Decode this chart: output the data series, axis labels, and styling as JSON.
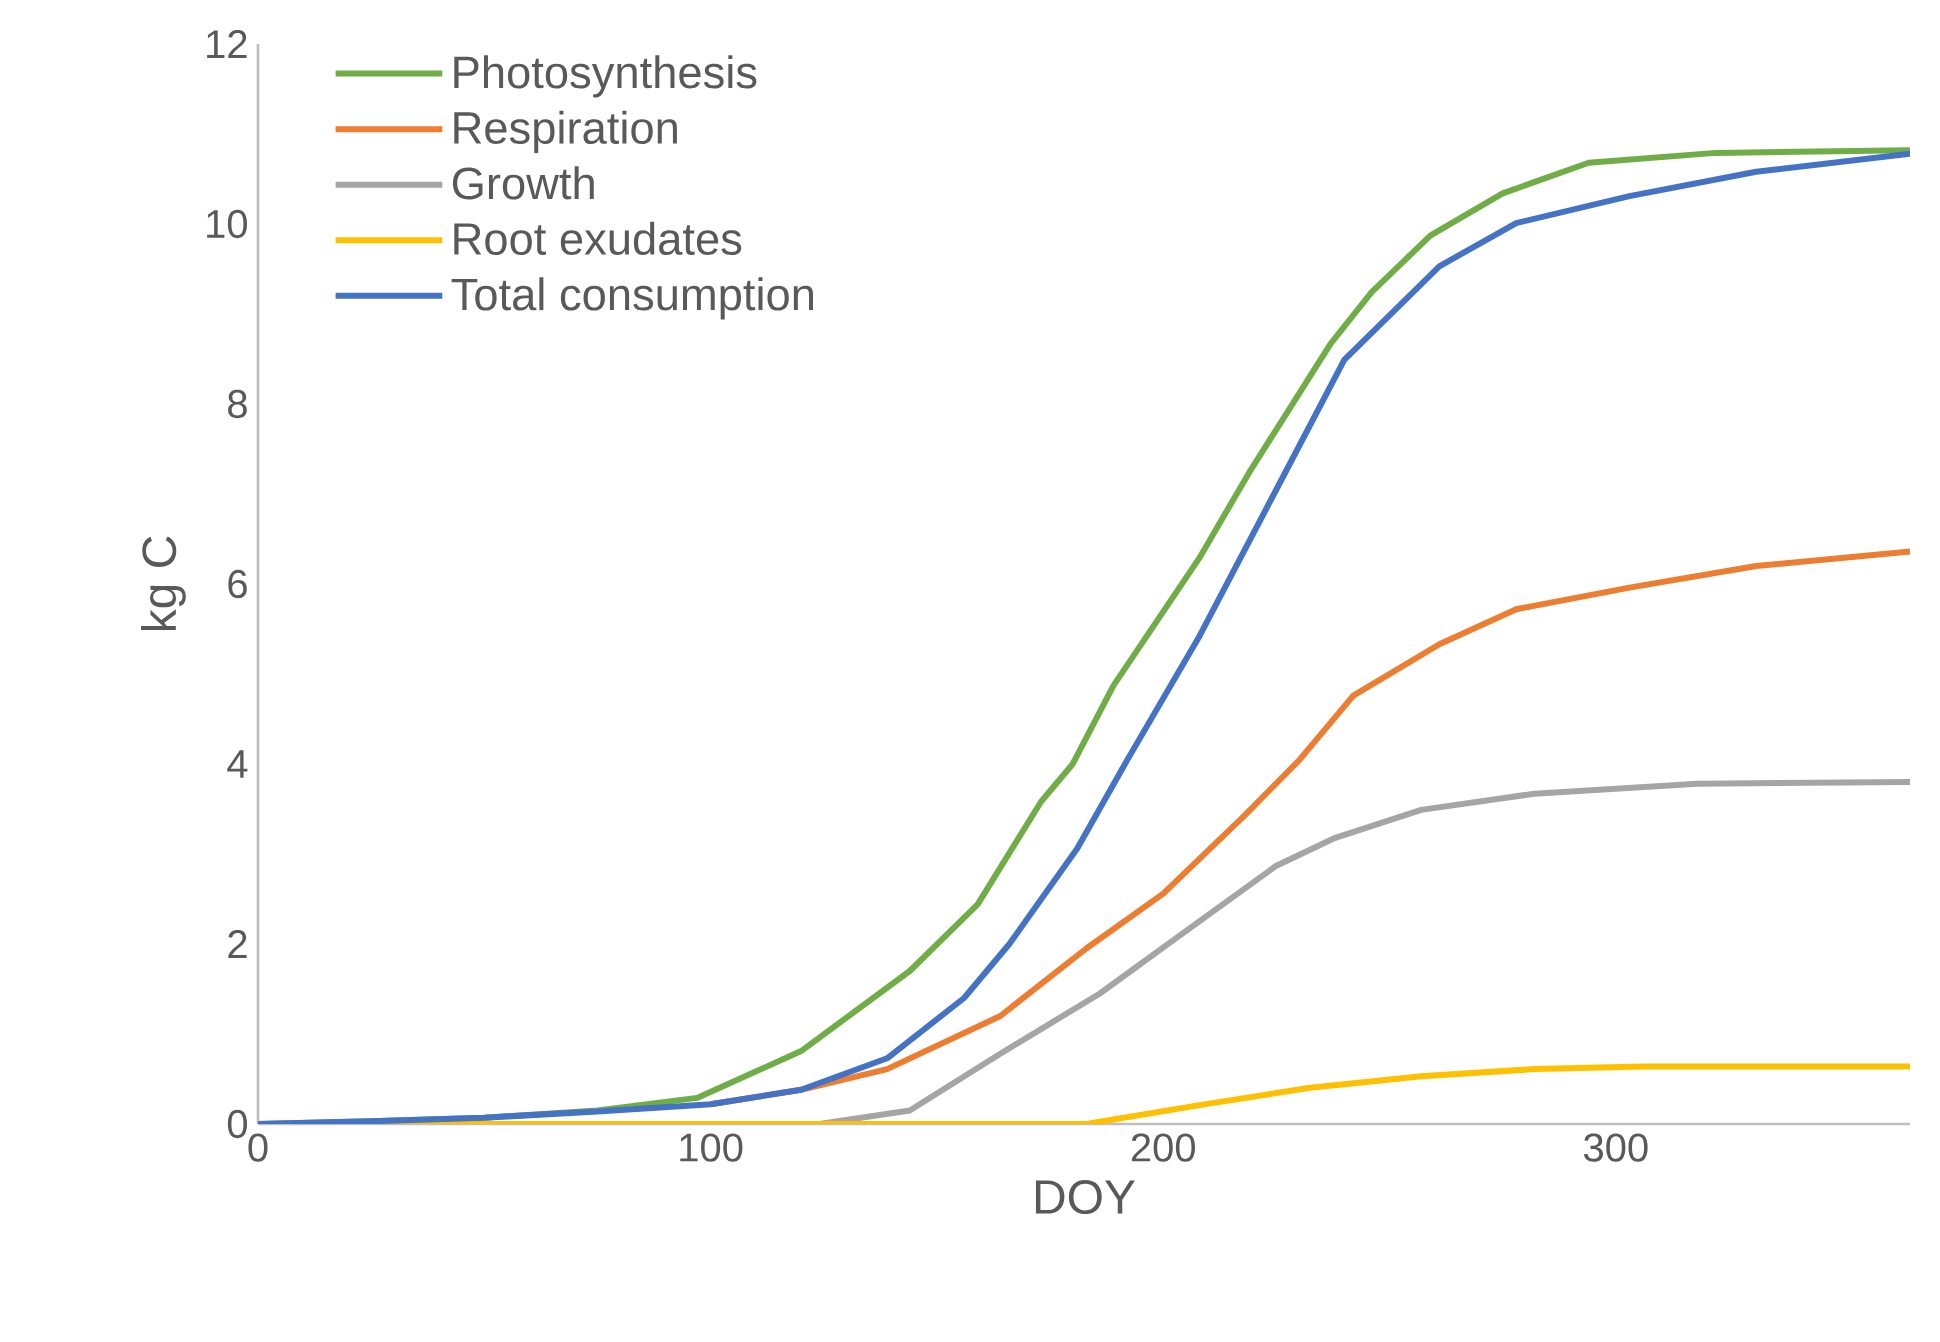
{
  "chart_data": {
    "type": "line",
    "xlabel": "DOY",
    "ylabel": "kg C",
    "xlim": [
      0,
      365
    ],
    "ylim": [
      0,
      12
    ],
    "xticks": [
      0,
      100,
      200,
      300
    ],
    "yticks": [
      0,
      2,
      4,
      6,
      8,
      10,
      12
    ],
    "grid": false,
    "legend": "top left",
    "series": [
      {
        "name": "Photosynthesis",
        "color": "#70ad47",
        "x": [
          0,
          25,
          50,
          75,
          97,
          120,
          144,
          159,
          173,
          180,
          189,
          208,
          219,
          237,
          246,
          259,
          275,
          294,
          322,
          365
        ],
        "values": [
          0,
          0.03,
          0.07,
          0.15,
          0.29,
          0.81,
          1.7,
          2.44,
          3.58,
          4.0,
          4.87,
          6.29,
          7.24,
          8.67,
          9.24,
          9.87,
          10.34,
          10.68,
          10.79,
          10.82
        ]
      },
      {
        "name": "Respiration",
        "color": "#ed7d31",
        "x": [
          100,
          120,
          139,
          164,
          183,
          200,
          218,
          230,
          242,
          261,
          278,
          303,
          331,
          365
        ],
        "values": [
          0.22,
          0.38,
          0.61,
          1.2,
          1.95,
          2.56,
          3.43,
          4.04,
          4.76,
          5.33,
          5.72,
          5.96,
          6.2,
          6.36
        ]
      },
      {
        "name": "Growth",
        "color": "#a5a5a5",
        "x": [
          0,
          50,
          100,
          124,
          144,
          164,
          186,
          203,
          225,
          238,
          257,
          282,
          318,
          365
        ],
        "values": [
          0,
          0,
          0,
          0,
          0.15,
          0.78,
          1.45,
          2.07,
          2.87,
          3.18,
          3.49,
          3.67,
          3.78,
          3.8
        ]
      },
      {
        "name": "Root exudates",
        "color": "#ffc000",
        "x": [
          0,
          100,
          183,
          208,
          232,
          257,
          282,
          306,
          365
        ],
        "values": [
          0,
          0,
          0,
          0.21,
          0.4,
          0.53,
          0.61,
          0.64,
          0.64
        ]
      },
      {
        "name": "Total consumption",
        "color": "#4472c4",
        "x": [
          0,
          25,
          50,
          75,
          100,
          120,
          139,
          156,
          166,
          181,
          192,
          208,
          225,
          240,
          261,
          278,
          303,
          331,
          365
        ],
        "values": [
          0,
          0.03,
          0.07,
          0.14,
          0.22,
          0.38,
          0.73,
          1.4,
          2.0,
          3.06,
          4.04,
          5.42,
          7.05,
          8.49,
          9.53,
          10.01,
          10.31,
          10.58,
          10.78
        ]
      }
    ]
  }
}
